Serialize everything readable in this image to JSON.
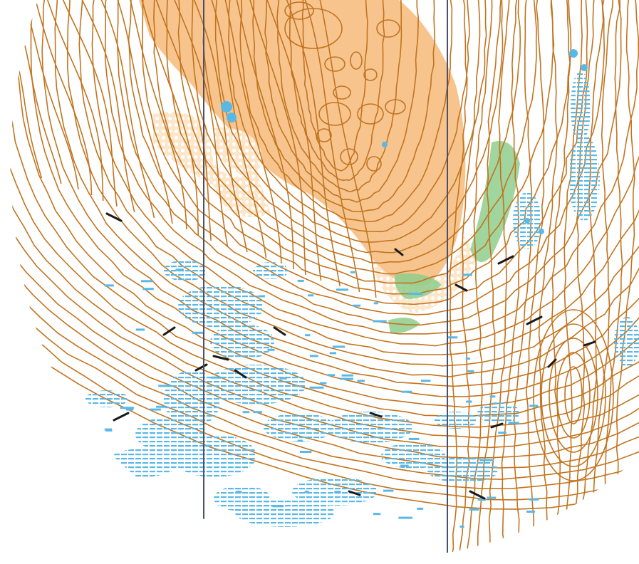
{
  "map": {
    "type": "orienteering-map-fragment",
    "colors": {
      "background": "#ffffff",
      "contour": "#c2741f",
      "open_land": "#f7c48e",
      "rough_open_dots": "#fde3c4",
      "water": "#5ab8e6",
      "vegetation": "#7cc27a",
      "rock": "#1a1a1a",
      "magnetic_north_line": "#4a4f6a"
    },
    "features": [
      "contour-lines",
      "open-land-area",
      "marsh-patches",
      "boulders-and-cliffs",
      "vegetation-strips",
      "magnetic-north-lines"
    ]
  }
}
